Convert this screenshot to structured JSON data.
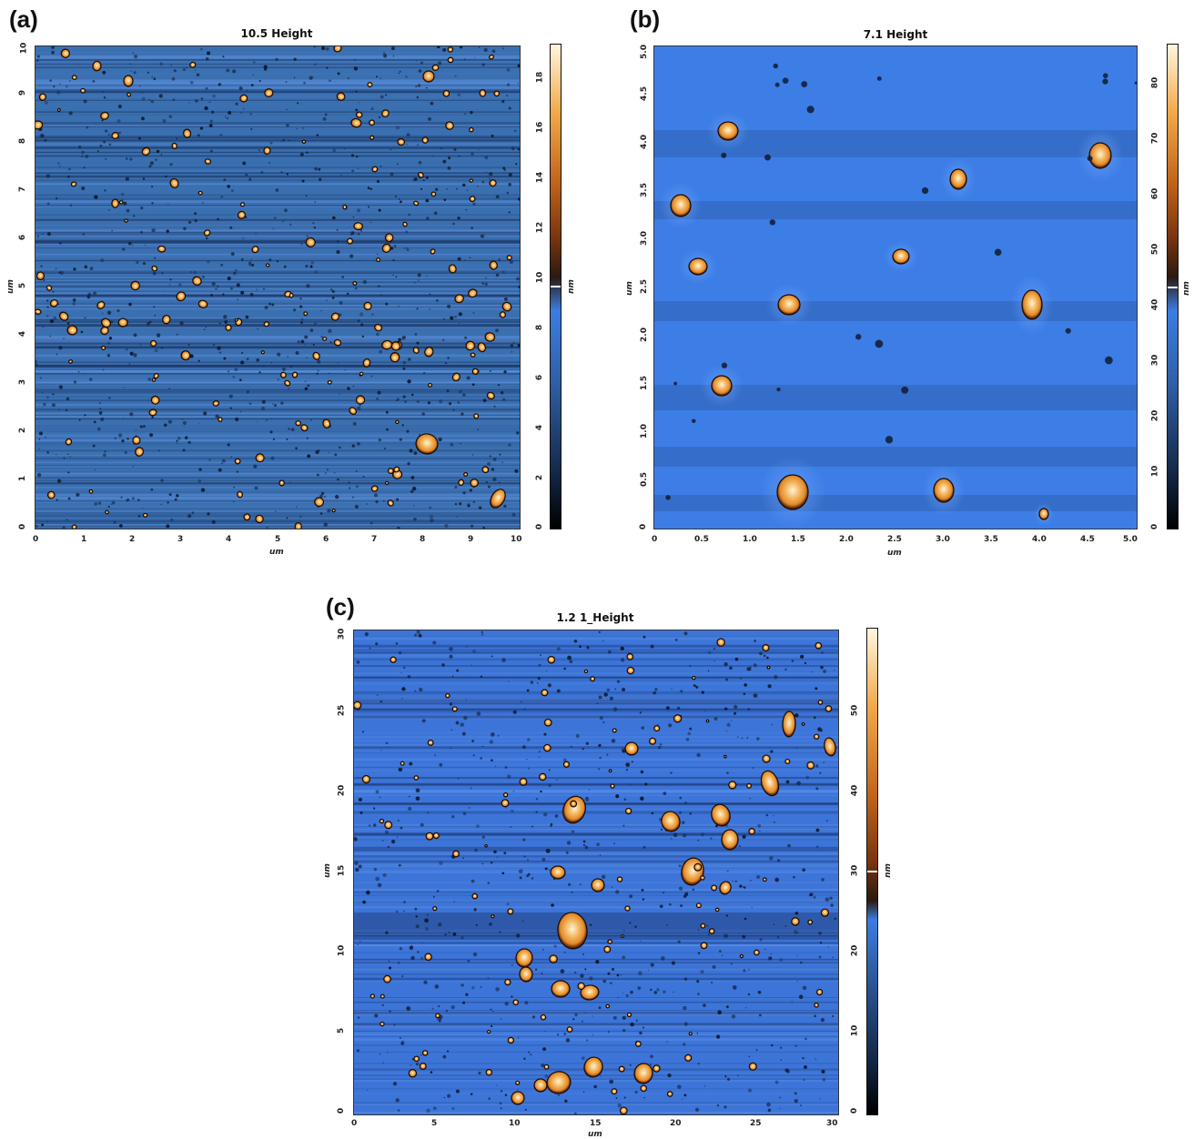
{
  "panels": [
    {
      "label": "(a)",
      "title": "10.5 Height",
      "x_ticks": [
        "0",
        "1",
        "2",
        "3",
        "4",
        "5",
        "6",
        "7",
        "8",
        "9",
        "10"
      ],
      "y_ticks": [
        "0",
        "1",
        "2",
        "3",
        "4",
        "5",
        "6",
        "7",
        "8",
        "9",
        "10"
      ],
      "x_label": "um",
      "y_label": "um",
      "colorbar_ticks": [
        "0",
        "2",
        "4",
        "6",
        "8",
        "10",
        "12",
        "14",
        "16",
        "18"
      ],
      "colorbar_unit": "nm"
    },
    {
      "label": "(b)",
      "title": "7.1 Height",
      "x_ticks": [
        "0",
        "0.5",
        "1.0",
        "1.5",
        "2.0",
        "2.5",
        "3.0",
        "3.5",
        "4.0",
        "4.5",
        "5.0"
      ],
      "y_ticks": [
        "0",
        "0.5",
        "1.0",
        "1.5",
        "2.0",
        "2.5",
        "3.0",
        "3.5",
        "4.0",
        "4.5",
        "5.0"
      ],
      "x_label": "um",
      "y_label": "um",
      "colorbar_ticks": [
        "0",
        "10",
        "20",
        "30",
        "40",
        "50",
        "60",
        "70",
        "80"
      ],
      "colorbar_unit": "nm"
    },
    {
      "label": "(c)",
      "title": "1.2 1_Height",
      "x_ticks": [
        "0",
        "5",
        "10",
        "15",
        "20",
        "25",
        "30"
      ],
      "y_ticks": [
        "0",
        "5",
        "10",
        "15",
        "20",
        "25",
        "30"
      ],
      "x_label": "um",
      "y_label": "um",
      "colorbar_ticks": [
        "0",
        "10",
        "20",
        "30",
        "40",
        "50"
      ],
      "colorbar_unit": "nm"
    }
  ],
  "colors": {
    "substrate_a": "#3a6fb0",
    "substrate_b": "#3d7ee6",
    "substrate_c": "#3c74d8",
    "particle_core": "#fff4d6",
    "particle_mid": "#e08a2a",
    "particle_edge": "#2a1206"
  }
}
